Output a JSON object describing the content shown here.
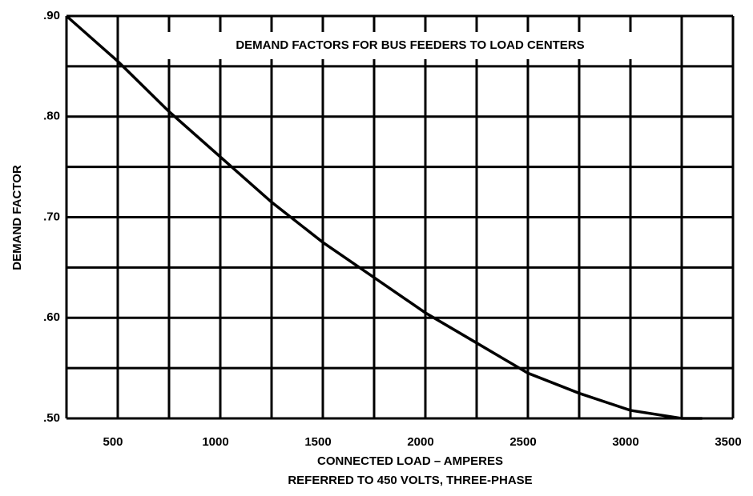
{
  "chart_data": {
    "type": "line",
    "title": "DEMAND FACTORS FOR BUS FEEDERS TO LOAD CENTERS",
    "xlabel": [
      "CONNECTED LOAD – AMPERES",
      "REFERRED TO 450 VOLTS, THREE-PHASE"
    ],
    "ylabel": "DEMAND FACTOR",
    "x": [
      250,
      500,
      750,
      1000,
      1250,
      1500,
      1750,
      2000,
      2250,
      2500,
      2750,
      3000,
      3250,
      3350
    ],
    "series": [
      {
        "color": "#000000",
        "values": [
          0.9,
          0.855,
          0.805,
          0.76,
          0.715,
          0.675,
          0.64,
          0.605,
          0.575,
          0.545,
          0.525,
          0.508,
          0.5,
          0.5
        ]
      }
    ],
    "xlim": [
      250,
      3500
    ],
    "ylim": [
      0.5,
      0.9
    ],
    "xticks": [
      500,
      1000,
      1500,
      2000,
      2500,
      3000,
      3500
    ],
    "minor_xticks": [
      750,
      1250,
      1750,
      2250,
      2750,
      3250
    ],
    "yticks": [
      {
        "value": 0.5,
        "label": ".50"
      },
      {
        "value": 0.6,
        "label": ".60"
      },
      {
        "value": 0.7,
        "label": ".70"
      },
      {
        "value": 0.8,
        "label": ".80"
      },
      {
        "value": 0.9,
        "label": ".90"
      }
    ],
    "minor_yticks": [
      0.55,
      0.65,
      0.75,
      0.85
    ],
    "grid": true
  }
}
